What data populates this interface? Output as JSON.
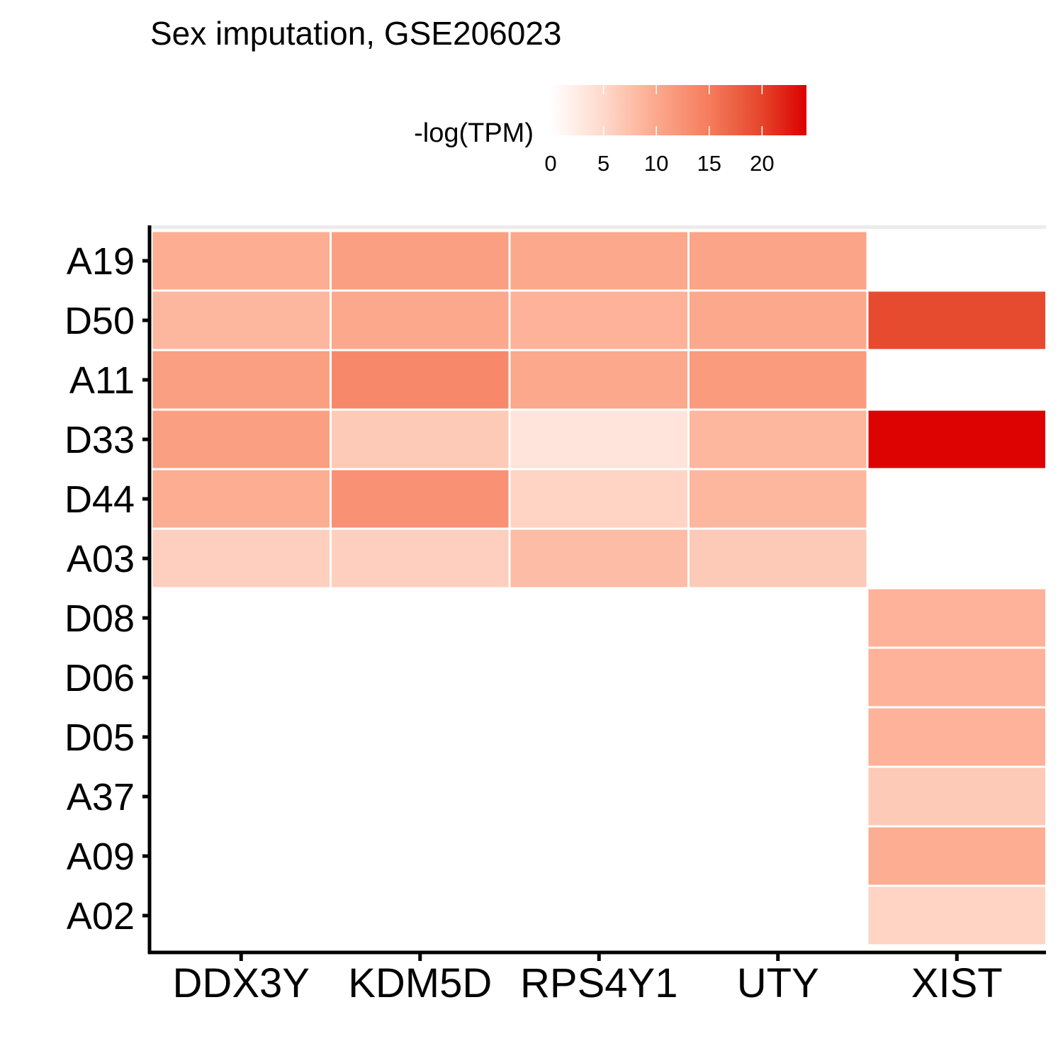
{
  "chart_data": {
    "type": "heatmap",
    "title": "Sex imputation, GSE206023",
    "xlabel": "",
    "ylabel": "",
    "x_categories": [
      "DDX3Y",
      "KDM5D",
      "RPS4Y1",
      "UTY",
      "XIST"
    ],
    "y_categories": [
      "A19",
      "D50",
      "A11",
      "D33",
      "D44",
      "A03",
      "D08",
      "D06",
      "D05",
      "A37",
      "A09",
      "A02"
    ],
    "values": [
      [
        9.5,
        11.0,
        10.0,
        10.5,
        null
      ],
      [
        8.5,
        10.0,
        9.0,
        10.0,
        19.5
      ],
      [
        11.0,
        13.5,
        10.0,
        11.5,
        null
      ],
      [
        11.0,
        6.5,
        3.5,
        8.5,
        24.0
      ],
      [
        9.5,
        12.5,
        5.5,
        8.5,
        null
      ],
      [
        6.0,
        6.0,
        8.0,
        6.5,
        null
      ],
      [
        null,
        null,
        null,
        null,
        9.0
      ],
      [
        null,
        null,
        null,
        null,
        9.0
      ],
      [
        null,
        null,
        null,
        null,
        9.0
      ],
      [
        null,
        null,
        null,
        null,
        6.5
      ],
      [
        null,
        null,
        null,
        null,
        9.5
      ],
      [
        null,
        null,
        null,
        null,
        5.5
      ]
    ],
    "legend": {
      "title": "-log(TPM)",
      "ticks": [
        0,
        5,
        10,
        15,
        20
      ],
      "range": [
        0,
        24.2
      ],
      "low_color": "#ffffff",
      "high_color": "#dc0000",
      "stops": [
        {
          "v": 0,
          "c": "#ffffff"
        },
        {
          "v": 5,
          "c": "#ffd9cb"
        },
        {
          "v": 10,
          "c": "#fca88c"
        },
        {
          "v": 15,
          "c": "#f57c5c"
        },
        {
          "v": 20,
          "c": "#e5452a"
        },
        {
          "v": 24.2,
          "c": "#dc0000"
        }
      ],
      "placement": "top"
    },
    "missing_color": "#ffffff",
    "grid": false
  }
}
